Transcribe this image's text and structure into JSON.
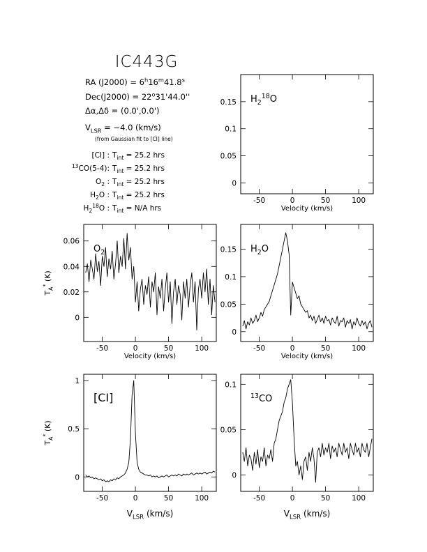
{
  "header": {
    "title": "IC443G",
    "lines": [
      [
        {
          "t": "RA (J2000) = 6"
        },
        {
          "t": "h",
          "pos": "sup"
        },
        {
          "t": "16"
        },
        {
          "t": "m",
          "pos": "sup"
        },
        {
          "t": "41.8"
        },
        {
          "t": "s",
          "pos": "sup"
        }
      ],
      [
        {
          "t": "Dec(J2000) = 22"
        },
        {
          "t": "o",
          "pos": "sup"
        },
        {
          "t": "31'44.0''"
        }
      ],
      [
        {
          "t": "Δα,Δδ = (0.0',0.0')"
        }
      ],
      [
        {
          "t": "V"
        },
        {
          "t": "LSR",
          "pos": "sub"
        },
        {
          "t": " = −4.0 (km/s)"
        }
      ]
    ],
    "note": "(from Gaussian fit to [CI] line)",
    "times": [
      {
        "label": [
          {
            "t": "[CI] :"
          }
        ],
        "value": [
          {
            "t": "T"
          },
          {
            "t": "int",
            "pos": "sub"
          },
          {
            "t": " = 25.2 hrs"
          }
        ]
      },
      {
        "label": [
          {
            "t": "13",
            "pos": "sup"
          },
          {
            "t": "CO(5-4):"
          }
        ],
        "value": [
          {
            "t": "T"
          },
          {
            "t": "int",
            "pos": "sub"
          },
          {
            "t": " = 25.2 hrs"
          }
        ]
      },
      {
        "label": [
          {
            "t": "O"
          },
          {
            "t": "2",
            "pos": "sub"
          },
          {
            "t": " :"
          }
        ],
        "value": [
          {
            "t": "T"
          },
          {
            "t": "int",
            "pos": "sub"
          },
          {
            "t": " = 25.2 hrs"
          }
        ]
      },
      {
        "label": [
          {
            "t": "H"
          },
          {
            "t": "2",
            "pos": "sub"
          },
          {
            "t": "O :"
          }
        ],
        "value": [
          {
            "t": "T"
          },
          {
            "t": "int",
            "pos": "sub"
          },
          {
            "t": " = 25.2 hrs"
          }
        ]
      },
      {
        "label": [
          {
            "t": "H"
          },
          {
            "t": "2",
            "pos": "sub"
          },
          {
            "t": "18",
            "pos": "sup"
          },
          {
            "t": "O :"
          }
        ],
        "value": [
          {
            "t": "T"
          },
          {
            "t": "int",
            "pos": "sub"
          },
          {
            "t": " = N/A hrs"
          }
        ]
      }
    ]
  },
  "chart_data": [
    {
      "type": "line",
      "label": [
        {
          "t": "H"
        },
        {
          "t": "2",
          "pos": "sub"
        },
        {
          "t": "18",
          "pos": "sup"
        },
        {
          "t": "O"
        }
      ],
      "xlabel": [
        {
          "t": "Velocity (km/s)"
        }
      ],
      "xlim": [
        -78,
        122
      ],
      "ylim": [
        -0.02,
        0.2
      ],
      "xticks": [
        -50,
        0,
        50,
        100
      ],
      "yticks": [
        0,
        0.05,
        0.1,
        0.15
      ]
    },
    {
      "type": "line",
      "label": [
        {
          "t": "O"
        },
        {
          "t": "2",
          "pos": "sub"
        }
      ],
      "xlabel": [
        {
          "t": "Velocity (km/s)"
        }
      ],
      "ylabel": [
        {
          "t": "T"
        },
        {
          "t": "A",
          "pos": "sub"
        },
        {
          "t": "*",
          "pos": "sup"
        },
        {
          "t": " (K)"
        }
      ],
      "xlim": [
        -78,
        122
      ],
      "ylim": [
        -0.019,
        0.073
      ],
      "xticks": [
        -50,
        0,
        50,
        100
      ],
      "yticks": [
        0,
        0.02,
        0.04,
        0.06
      ],
      "color": "#000000",
      "x": [
        -75,
        -72.5,
        -70,
        -67.5,
        -65,
        -62.5,
        -60,
        -57.5,
        -55,
        -52.5,
        -50,
        -47.5,
        -45,
        -42.5,
        -40,
        -37.5,
        -35,
        -32.5,
        -30,
        -27.5,
        -25,
        -22.5,
        -20,
        -17.5,
        -15,
        -12.5,
        -10,
        -7.5,
        -5,
        -2.5,
        0,
        2.5,
        5,
        7.5,
        10,
        12.5,
        15,
        17.5,
        20,
        22.5,
        25,
        27.5,
        30,
        32.5,
        35,
        37.5,
        40,
        42.5,
        45,
        47.5,
        50,
        52.5,
        55,
        57.5,
        60,
        62.5,
        65,
        67.5,
        70,
        72.5,
        75,
        77.5,
        80,
        82.5,
        85,
        87.5,
        90,
        92.5,
        95,
        97.5,
        100,
        102.5,
        105,
        107.5,
        110,
        112.5,
        115,
        117.5,
        120
      ],
      "values": [
        0.035,
        0.042,
        0.028,
        0.045,
        0.038,
        0.03,
        0.05,
        0.036,
        0.044,
        0.025,
        0.048,
        0.04,
        0.055,
        0.032,
        0.046,
        0.038,
        0.052,
        0.03,
        0.042,
        0.06,
        0.035,
        0.048,
        0.04,
        0.062,
        0.038,
        0.066,
        0.045,
        0.055,
        0.03,
        0.04,
        0.012,
        0.028,
        0.005,
        0.022,
        0.03,
        0.01,
        0.025,
        0.018,
        0.032,
        0.008,
        0.028,
        0.02,
        0.035,
        0.002,
        0.024,
        0.015,
        0.03,
        0.005,
        0.022,
        0.035,
        0.012,
        0.028,
        -0.005,
        0.02,
        0.03,
        0.01,
        0.025,
        0.018,
        -0.002,
        0.028,
        0.015,
        0.03,
        0.008,
        0.025,
        0.035,
        0.012,
        0.028,
        -0.01,
        0.022,
        0.03,
        0.015,
        0.035,
        0.02,
        0.038,
        0.01,
        0.03,
        0.002,
        0.025,
        0.012
      ]
    },
    {
      "type": "line",
      "label": [
        {
          "t": "H"
        },
        {
          "t": "2",
          "pos": "sub"
        },
        {
          "t": "O"
        }
      ],
      "xlabel": [
        {
          "t": "Velocity (km/s)"
        }
      ],
      "xlim": [
        -78,
        122
      ],
      "ylim": [
        -0.018,
        0.195
      ],
      "xticks": [
        -50,
        0,
        50,
        100
      ],
      "yticks": [
        0,
        0.05,
        0.1,
        0.15
      ],
      "color": "#000000",
      "x": [
        -75,
        -72.5,
        -70,
        -67.5,
        -65,
        -62.5,
        -60,
        -57.5,
        -55,
        -52.5,
        -50,
        -47.5,
        -45,
        -42.5,
        -40,
        -37.5,
        -35,
        -32.5,
        -30,
        -27.5,
        -25,
        -22.5,
        -20,
        -17.5,
        -15,
        -12.5,
        -10,
        -7.5,
        -5,
        -2.5,
        0,
        2.5,
        5,
        7.5,
        10,
        12.5,
        15,
        17.5,
        20,
        22.5,
        25,
        27.5,
        30,
        32.5,
        35,
        37.5,
        40,
        42.5,
        45,
        47.5,
        50,
        52.5,
        55,
        57.5,
        60,
        62.5,
        65,
        67.5,
        70,
        72.5,
        75,
        77.5,
        80,
        82.5,
        85,
        87.5,
        90,
        92.5,
        95,
        97.5,
        100,
        102.5,
        105,
        107.5,
        110,
        112.5,
        115,
        117.5,
        120
      ],
      "values": [
        0.01,
        0.02,
        0.005,
        0.018,
        0.012,
        0.025,
        0.015,
        0.02,
        0.03,
        0.018,
        0.025,
        0.035,
        0.028,
        0.04,
        0.045,
        0.05,
        0.055,
        0.065,
        0.075,
        0.085,
        0.095,
        0.105,
        0.12,
        0.135,
        0.15,
        0.165,
        0.18,
        0.165,
        0.14,
        0.03,
        0.09,
        0.08,
        0.07,
        0.06,
        0.065,
        0.05,
        0.045,
        0.04,
        0.035,
        0.038,
        0.025,
        0.03,
        0.02,
        0.028,
        0.015,
        0.022,
        0.03,
        0.018,
        0.025,
        0.015,
        0.028,
        0.02,
        0.022,
        0.012,
        0.025,
        0.018,
        0.015,
        0.028,
        0.01,
        0.02,
        0.018,
        0.025,
        0.008,
        0.02,
        0.015,
        0.022,
        0.005,
        0.018,
        0.012,
        0.025,
        0.015,
        0.01,
        0.02,
        0.012,
        0.018,
        0.005,
        0.015,
        0.02,
        0.008
      ]
    },
    {
      "type": "line",
      "label": [
        {
          "t": "[CI]"
        }
      ],
      "xlabel": [
        {
          "t": "V"
        },
        {
          "t": "LSR",
          "pos": "sub"
        },
        {
          "t": " (km/s)"
        }
      ],
      "ylabel": [
        {
          "t": "T"
        },
        {
          "t": "A",
          "pos": "sub"
        },
        {
          "t": "*",
          "pos": "sup"
        },
        {
          "t": " (K)"
        }
      ],
      "xlim": [
        -78,
        122
      ],
      "ylim": [
        -0.15,
        1.065
      ],
      "xticks": [
        -50,
        0,
        50,
        100
      ],
      "yticks": [
        0,
        0.5,
        1
      ],
      "color": "#000000",
      "x": [
        -75,
        -72.5,
        -70,
        -67.5,
        -65,
        -62.5,
        -60,
        -57.5,
        -55,
        -52.5,
        -50,
        -47.5,
        -45,
        -42.5,
        -40,
        -37.5,
        -35,
        -32.5,
        -30,
        -27.5,
        -25,
        -22.5,
        -20,
        -17.5,
        -15,
        -12.5,
        -10,
        -7.5,
        -5,
        -2.5,
        0,
        2.5,
        5,
        7.5,
        10,
        12.5,
        15,
        17.5,
        20,
        22.5,
        25,
        27.5,
        30,
        32.5,
        35,
        37.5,
        40,
        42.5,
        45,
        47.5,
        50,
        52.5,
        55,
        57.5,
        60,
        62.5,
        65,
        67.5,
        70,
        72.5,
        75,
        77.5,
        80,
        82.5,
        85,
        87.5,
        90,
        92.5,
        95,
        97.5,
        100,
        102.5,
        105,
        107.5,
        110,
        112.5,
        115,
        117.5,
        120
      ],
      "values": [
        0.02,
        0.0,
        0.01,
        -0.01,
        0.0,
        -0.02,
        -0.01,
        -0.02,
        -0.03,
        -0.02,
        -0.04,
        -0.03,
        -0.05,
        -0.04,
        -0.05,
        -0.03,
        -0.04,
        -0.02,
        -0.03,
        -0.01,
        -0.02,
        0.0,
        0.01,
        0.02,
        0.04,
        0.08,
        0.15,
        0.4,
        0.85,
        1.0,
        0.45,
        0.15,
        0.08,
        0.05,
        0.04,
        0.03,
        0.02,
        0.02,
        0.01,
        0.02,
        0.0,
        0.01,
        0.0,
        0.01,
        -0.01,
        0.0,
        0.01,
        0.0,
        0.01,
        0.02,
        0.0,
        0.01,
        0.02,
        0.01,
        0.02,
        0.01,
        0.03,
        0.02,
        0.01,
        0.03,
        0.02,
        0.03,
        0.02,
        0.03,
        0.04,
        0.02,
        0.03,
        0.04,
        0.03,
        0.04,
        0.03,
        0.04,
        0.05,
        0.03,
        0.04,
        0.05,
        0.04,
        0.06,
        0.05
      ]
    },
    {
      "type": "line",
      "label": [
        {
          "t": "13",
          "pos": "sup"
        },
        {
          "t": "CO"
        }
      ],
      "xlabel": [
        {
          "t": "V"
        },
        {
          "t": "LSR",
          "pos": "sub"
        },
        {
          "t": " (km/s)"
        }
      ],
      "xlim": [
        -78,
        122
      ],
      "ylim": [
        -0.018,
        0.111
      ],
      "xticks": [
        -50,
        0,
        50,
        100
      ],
      "yticks": [
        0,
        0.05,
        0.1
      ],
      "color": "#000000",
      "x": [
        -75,
        -72.5,
        -70,
        -67.5,
        -65,
        -62.5,
        -60,
        -57.5,
        -55,
        -52.5,
        -50,
        -47.5,
        -45,
        -42.5,
        -40,
        -37.5,
        -35,
        -32.5,
        -30,
        -27.5,
        -25,
        -22.5,
        -20,
        -17.5,
        -15,
        -12.5,
        -10,
        -7.5,
        -5,
        -2.5,
        0,
        2.5,
        5,
        7.5,
        10,
        12.5,
        15,
        17.5,
        20,
        22.5,
        25,
        27.5,
        30,
        32.5,
        35,
        37.5,
        40,
        42.5,
        45,
        47.5,
        50,
        52.5,
        55,
        57.5,
        60,
        62.5,
        65,
        67.5,
        70,
        72.5,
        75,
        77.5,
        80,
        82.5,
        85,
        87.5,
        90,
        92.5,
        95,
        97.5,
        100,
        102.5,
        105,
        107.5,
        110,
        112.5,
        115,
        117.5,
        120
      ],
      "values": [
        0.025,
        0.015,
        0.03,
        0.01,
        0.022,
        0.018,
        0.005,
        0.025,
        0.012,
        0.028,
        0.008,
        0.02,
        0.015,
        0.03,
        0.01,
        0.022,
        0.018,
        0.028,
        0.015,
        0.035,
        0.04,
        0.05,
        0.06,
        0.065,
        0.07,
        0.08,
        0.085,
        0.095,
        0.1,
        0.105,
        0.08,
        0.04,
        0.01,
        0.015,
        0.0,
        0.01,
        -0.005,
        0.015,
        0.02,
        0.005,
        0.025,
        0.015,
        0.03,
        0.018,
        -0.008,
        0.025,
        0.03,
        0.02,
        0.035,
        0.022,
        0.03,
        0.025,
        0.035,
        0.018,
        0.032,
        0.025,
        0.03,
        0.02,
        0.035,
        0.028,
        0.022,
        0.035,
        0.025,
        0.03,
        0.018,
        0.035,
        0.028,
        0.022,
        0.035,
        0.025,
        0.03,
        0.02,
        0.035,
        0.028,
        0.025,
        0.035,
        0.02,
        0.03,
        0.04
      ]
    }
  ]
}
